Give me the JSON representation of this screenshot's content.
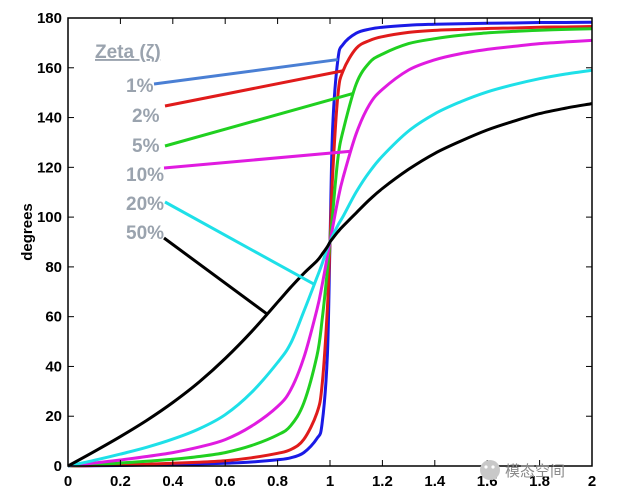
{
  "chart_data": {
    "type": "line",
    "title": "",
    "xlabel": "",
    "ylabel": "degrees",
    "xlim": [
      0,
      2
    ],
    "ylim": [
      0,
      180
    ],
    "xticks": [
      0,
      0.2,
      0.4,
      0.6,
      0.8,
      1,
      1.2,
      1.4,
      1.6,
      1.8,
      2
    ],
    "xtick_labels": [
      "0",
      "0.2",
      "0.4",
      "0.6",
      "0.8",
      "1",
      "1.2",
      "1.4",
      "1.6",
      "1.8",
      "2"
    ],
    "yticks": [
      0,
      20,
      40,
      60,
      80,
      100,
      120,
      140,
      160,
      180
    ],
    "ytick_labels": [
      "0",
      "20",
      "40",
      "60",
      "80",
      "100",
      "120",
      "140",
      "160",
      "180"
    ],
    "grid": false,
    "legend_title": "Zeta (ζ)",
    "x": [
      0,
      0.1,
      0.2,
      0.3,
      0.4,
      0.5,
      0.6,
      0.7,
      0.8,
      0.85,
      0.9,
      0.95,
      0.97,
      0.99,
      1.0,
      1.01,
      1.03,
      1.05,
      1.1,
      1.15,
      1.2,
      1.3,
      1.4,
      1.5,
      1.6,
      1.7,
      1.8,
      1.9,
      2.0
    ],
    "series": [
      {
        "name": "1%",
        "color": "#1a1ae6",
        "values": [
          0,
          0.1,
          0.2,
          0.4,
          0.5,
          0.8,
          1.1,
          1.6,
          2.5,
          3.3,
          5.4,
          11.0,
          17.1,
          44.7,
          90,
          135.3,
          163.3,
          169.4,
          173.9,
          175.5,
          176.3,
          177.1,
          177.5,
          177.7,
          177.9,
          178.0,
          178.2,
          178.2,
          178.3
        ]
      },
      {
        "name": "2%",
        "color": "#e01b1b",
        "values": [
          0,
          0.2,
          0.5,
          0.7,
          1.1,
          1.5,
          2.1,
          3.3,
          5.1,
          6.6,
          10.7,
          21.3,
          32.6,
          63.4,
          90,
          116.6,
          148.9,
          158.8,
          167.8,
          170.9,
          172.5,
          174.2,
          175.0,
          175.4,
          175.8,
          176.0,
          176.3,
          176.4,
          176.6
        ]
      },
      {
        "name": "5%",
        "color": "#20d020",
        "values": [
          0,
          0.6,
          1.2,
          1.9,
          2.7,
          3.8,
          5.4,
          8.2,
          12.5,
          16.2,
          25.3,
          44.2,
          58.7,
          78.7,
          90,
          101.1,
          123.5,
          134.7,
          153.5,
          162.0,
          165.5,
          169.7,
          171.7,
          173.1,
          174.0,
          174.6,
          175.1,
          175.4,
          175.7
        ]
      },
      {
        "name": "10%",
        "color": "#e01be0",
        "values": [
          0,
          1.2,
          2.4,
          3.8,
          5.4,
          7.6,
          10.6,
          16.0,
          23.9,
          30.6,
          43.5,
          62.8,
          72.7,
          84.3,
          90,
          95.7,
          106.9,
          115.9,
          133.5,
          145.1,
          151.3,
          159.1,
          163.2,
          165.7,
          167.4,
          168.6,
          169.7,
          170.4,
          171.0
        ]
      },
      {
        "name": "20%",
        "color": "#1ee0e8",
        "values": [
          0,
          2.3,
          4.8,
          7.5,
          10.8,
          14.9,
          20.6,
          29.5,
          41.6,
          49.3,
          62.1,
          75.7,
          81.3,
          87.6,
          90,
          92.4,
          96.7,
          100.3,
          110.1,
          118.1,
          124.5,
          134.6,
          141.5,
          146.4,
          150.3,
          153.2,
          155.6,
          157.5,
          159.0
        ]
      },
      {
        "name": "50%",
        "color": "#000000",
        "values": [
          0,
          5.8,
          11.8,
          18.3,
          25.5,
          33.7,
          43.2,
          53.9,
          65.8,
          71.8,
          77.4,
          82.4,
          85.1,
          88.1,
          90,
          91.4,
          94.1,
          96.4,
          101.7,
          106.9,
          111.5,
          119.2,
          125.6,
          130.6,
          135.0,
          138.5,
          141.6,
          143.8,
          145.6
        ]
      }
    ]
  },
  "watermark": {
    "text": "模态空间",
    "icon": "wechat-logo-icon"
  }
}
